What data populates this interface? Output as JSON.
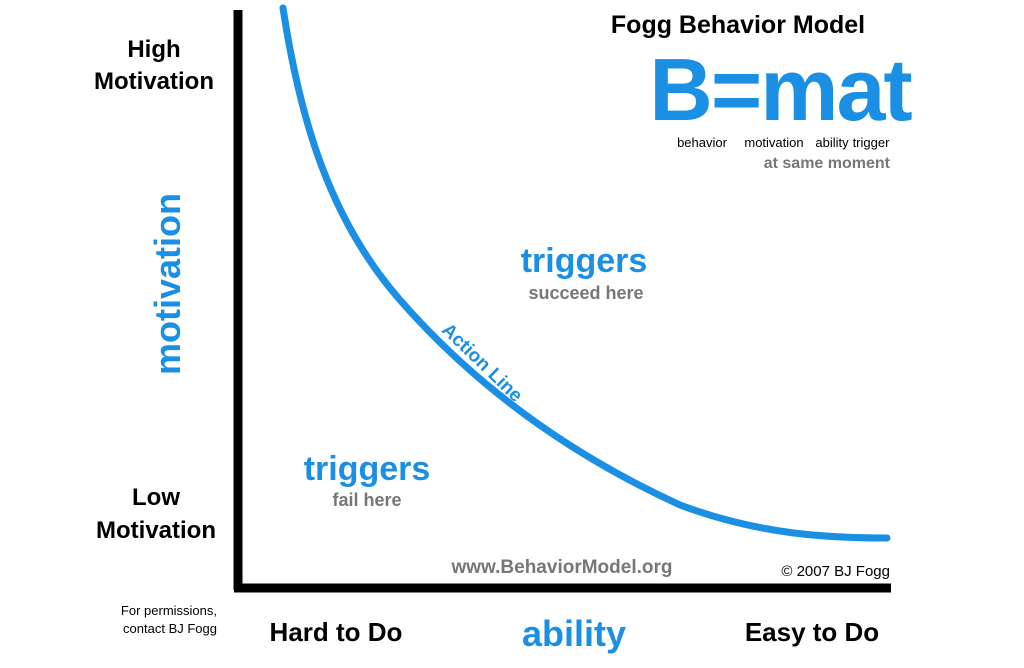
{
  "header": {
    "title": "Fogg Behavior Model"
  },
  "formula": {
    "text": "B=mat",
    "legend": [
      "behavior",
      "motivation",
      "ability",
      "trigger"
    ],
    "note": "at same moment"
  },
  "axes": {
    "y": {
      "label": "motivation",
      "high": [
        "High",
        "Motivation"
      ],
      "low": [
        "Low",
        "Motivation"
      ]
    },
    "x": {
      "label": "ability",
      "low": "Hard to Do",
      "high": "Easy to Do"
    }
  },
  "curve": {
    "label": "Action Line"
  },
  "regions": [
    {
      "heading": "triggers",
      "note": "succeed here"
    },
    {
      "heading": "triggers",
      "note": "fail here"
    }
  ],
  "footer": {
    "url": "www.BehaviorModel.org",
    "copyright": "© 2007 BJ Fogg",
    "permissions": [
      "For permissions,",
      "contact BJ Fogg"
    ]
  }
}
